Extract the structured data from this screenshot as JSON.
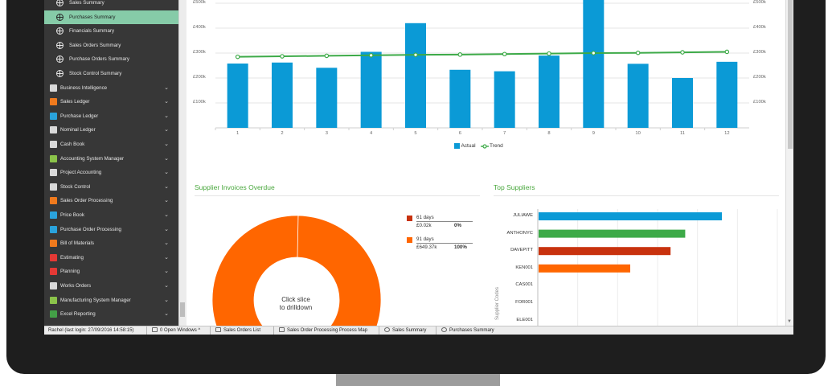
{
  "sidebar": {
    "items": [
      {
        "label": "Sales Summary",
        "icon": "globe-icon",
        "level": "sub",
        "active": false
      },
      {
        "label": "Purchases Summary",
        "icon": "globe-icon",
        "level": "sub",
        "active": true
      },
      {
        "label": "Financials Summary",
        "icon": "globe-icon",
        "level": "sub",
        "active": false
      },
      {
        "label": "Sales Orders Summary",
        "icon": "globe-icon",
        "level": "sub",
        "active": false
      },
      {
        "label": "Purchase Orders Summary",
        "icon": "globe-icon",
        "level": "sub",
        "active": false
      },
      {
        "label": "Stock Control Summary",
        "icon": "globe-icon",
        "level": "sub",
        "active": false
      },
      {
        "label": "Business Intelligence",
        "icon": "cube-icon",
        "level": "top",
        "color": "#d9d9d9"
      },
      {
        "label": "Sales Ledger",
        "icon": "person-icon",
        "level": "top",
        "color": "#f07a1d"
      },
      {
        "label": "Purchase Ledger",
        "icon": "person-icon",
        "level": "top",
        "color": "#2aa3dc"
      },
      {
        "label": "Nominal Ledger",
        "icon": "map-icon",
        "level": "top",
        "color": "#d9d9d9"
      },
      {
        "label": "Cash Book",
        "icon": "bank-icon",
        "level": "top",
        "color": "#d9d9d9"
      },
      {
        "label": "Accounting System Manager",
        "icon": "admin-icon",
        "level": "top",
        "color": "#8bc34a"
      },
      {
        "label": "Project Accounting",
        "icon": "clipboard-icon",
        "level": "top",
        "color": "#d9d9d9"
      },
      {
        "label": "Stock Control",
        "icon": "boxes-icon",
        "level": "top",
        "color": "#d9d9d9"
      },
      {
        "label": "Sales Order Processing",
        "icon": "document-icon",
        "level": "top",
        "color": "#f07a1d"
      },
      {
        "label": "Price Book",
        "icon": "book-icon",
        "level": "top",
        "color": "#2aa3dc"
      },
      {
        "label": "Purchase Order Processing",
        "icon": "document-icon",
        "level": "top",
        "color": "#2aa3dc"
      },
      {
        "label": "Bill of Materials",
        "icon": "list-icon",
        "level": "top",
        "color": "#f07a1d"
      },
      {
        "label": "Estimating",
        "icon": "calculator-icon",
        "level": "top",
        "color": "#e53935"
      },
      {
        "label": "Planning",
        "icon": "calendar-icon",
        "level": "top",
        "color": "#e53935"
      },
      {
        "label": "Works Orders",
        "icon": "document-icon",
        "level": "top",
        "color": "#d9d9d9"
      },
      {
        "label": "Manufacturing System Manager",
        "icon": "admin-icon",
        "level": "top",
        "color": "#8bc34a"
      },
      {
        "label": "Excel Reporting",
        "icon": "excel-icon",
        "level": "top",
        "color": "#43a047"
      }
    ],
    "chevron": "⌄"
  },
  "statusbar": {
    "user": "Rachel (last login: 27/09/2016 14:58:15)",
    "windows": "0 Open Windows ^",
    "tabs": [
      "Sales Orders List",
      "Sales Order Processing Process Map",
      "Sales Summary",
      "Purchases Summary"
    ]
  },
  "colors": {
    "bar": "#0b9ad6",
    "trend": "#3daa48",
    "title": "#4aa83e",
    "active_nav": "#86cba8"
  },
  "charts": {
    "overdue_title": "Supplier Invoices Overdue",
    "top_title": "Top Suppliers",
    "drill_text": [
      "Click slice",
      "to drilldown"
    ],
    "donut_legend": [
      {
        "label": "61 days",
        "value": "£0.02k",
        "pct": "0%",
        "color": "#c8320e"
      },
      {
        "label": "91 days",
        "value": "£649.37k",
        "pct": "100%",
        "color": "#ff6600"
      }
    ],
    "supplier_axis_label": "Supplier Codes",
    "trend_legend": [
      "Actual",
      "Trend"
    ]
  },
  "chart_data": [
    {
      "type": "bar",
      "categories": [
        "1",
        "2",
        "3",
        "4",
        "5",
        "6",
        "7",
        "8",
        "9",
        "10",
        "11",
        "12"
      ],
      "series": [
        {
          "name": "Actual",
          "values": [
            258000,
            262000,
            241000,
            305000,
            420000,
            233000,
            227000,
            290000,
            545000,
            257000,
            200000,
            265000
          ]
        },
        {
          "name": "Trend",
          "values": [
            285000,
            287000,
            289000,
            291000,
            293000,
            294000,
            296000,
            298000,
            300000,
            301000,
            303000,
            305000
          ]
        }
      ],
      "yticks": [
        "£100k",
        "£200k",
        "£300k",
        "£400k",
        "£500k"
      ],
      "ylim": [
        0,
        500000
      ]
    },
    {
      "type": "pie",
      "title": "Supplier Invoices Overdue",
      "labels": [
        "61 days",
        "91 days"
      ],
      "values": [
        0.02,
        649.37
      ]
    },
    {
      "type": "bar",
      "title": "Top Suppliers",
      "categories": [
        "JULIAWE",
        "ANTHONYC",
        "DAVEPITT",
        "KEN001",
        "CAS001",
        "FOR001",
        "ELE001"
      ],
      "values": [
        100,
        80,
        72,
        50,
        null,
        null,
        null
      ],
      "bar_colors": [
        "#0b9ad6",
        "#3daa48",
        "#c8320e",
        "#ff6600",
        null,
        null,
        null
      ]
    }
  ]
}
